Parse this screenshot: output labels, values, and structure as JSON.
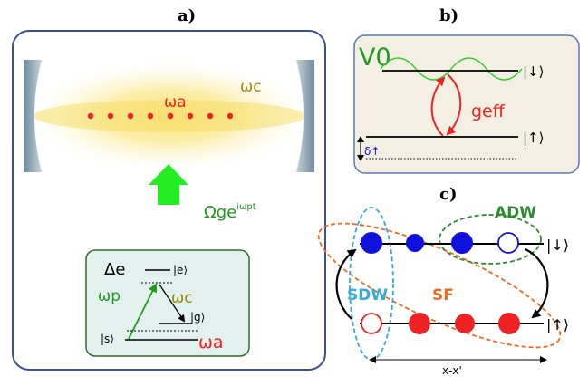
{
  "panel_a": {
    "label": "a)",
    "cavity_freq": "ωc",
    "atom_freq": "ωa",
    "pump_base": "Ωge",
    "pump_exp": "iωpt",
    "level_diagram": {
      "detuning": "Δe",
      "state_e": "|e⟩",
      "state_g": "|g⟩",
      "state_s": "|s⟩",
      "pump_freq": "ωp",
      "cavity_freq": "ωc",
      "atom_freq": "ωa"
    }
  },
  "panel_b": {
    "label": "b)",
    "potential": "V0",
    "coupling": "geff",
    "state_down": "|↓⟩",
    "state_up": "|↑⟩",
    "detuning": "δ↑"
  },
  "panel_c": {
    "label": "c)",
    "adw": "ADW",
    "sdw": "SDW",
    "sf": "SF",
    "state_down": "|↓⟩",
    "state_up": "|↑⟩",
    "axis": "x-x'"
  },
  "colors": {
    "panel_a_border": "#3a4f9a",
    "panel_a_fill": "#e6ecf7",
    "level_box_fill": "#e3f1ee",
    "level_box_border": "#2f6b2f",
    "panel_b_fill": "#f3efe3",
    "panel_b_border": "#5a78b8",
    "atom_red": "#ee2222",
    "pump_green": "#22ee22",
    "label_green": "#1f9a1f",
    "cavity_olive": "#9a8a10",
    "blue_atom": "#1111dd",
    "adw_green": "#2f8a2f",
    "sdw_cyan": "#33aadd",
    "sf_orange": "#ee6a1f"
  }
}
